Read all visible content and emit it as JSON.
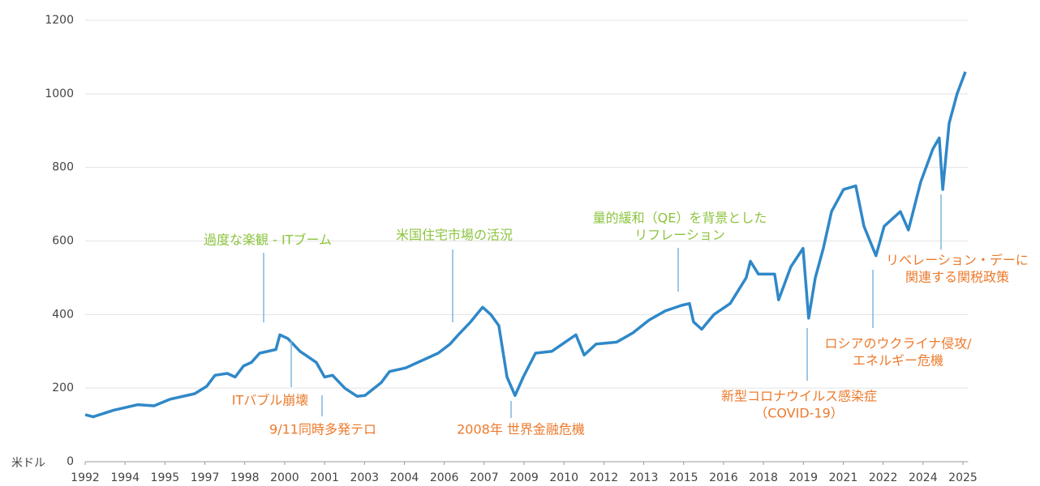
{
  "chart_data": {
    "type": "line",
    "unit_label": "米ドル",
    "xlim": [
      1992,
      2025.5
    ],
    "xticks": [
      1992,
      {
        "value": 1993.5,
        "label": "1994"
      },
      1995,
      {
        "value": 1996.5,
        "label": "1997"
      },
      1998,
      {
        "value": 1999.5,
        "label": "2000"
      },
      2001,
      {
        "value": 2002.5,
        "label": "2003"
      },
      2004,
      {
        "value": 2005.5,
        "label": "2006"
      },
      2007,
      {
        "value": 2008.5,
        "label": "2009"
      },
      2010,
      {
        "value": 2011.5,
        "label": "2012"
      },
      2013,
      {
        "value": 2014.5,
        "label": "2015"
      },
      2016,
      {
        "value": 2017.5,
        "label": "2018"
      },
      2019,
      {
        "value": 2020.5,
        "label": "2021"
      },
      2022,
      {
        "value": 2023.5,
        "label": "2024"
      },
      2025
    ],
    "ylim": [
      0,
      1200
    ],
    "yticks": [
      0,
      200,
      400,
      600,
      800,
      1000,
      1200
    ],
    "grid": true,
    "series": [
      {
        "color": "#2f88c8",
        "x": [
          1992.0,
          1992.3,
          1993.07,
          1993.98,
          1994.59,
          1995.2,
          1996.12,
          1996.57,
          1996.88,
          1997.34,
          1997.64,
          1997.95,
          1998.25,
          1998.56,
          1999.17,
          1999.32,
          1999.62,
          2000.08,
          2000.69,
          2001.0,
          2001.3,
          2001.76,
          2002.22,
          2002.52,
          2003.13,
          2003.44,
          2004.05,
          2004.66,
          2005.27,
          2005.72,
          2006.03,
          2006.49,
          2006.94,
          2007.25,
          2007.55,
          2007.86,
          2008.16,
          2008.47,
          2008.93,
          2009.54,
          2010.15,
          2010.45,
          2010.76,
          2011.21,
          2011.98,
          2012.59,
          2013.2,
          2013.81,
          2014.42,
          2014.72,
          2014.87,
          2015.18,
          2015.64,
          2016.25,
          2016.85,
          2017.01,
          2017.31,
          2017.92,
          2018.07,
          2018.53,
          2018.99,
          2019.2,
          2019.45,
          2019.75,
          2020.06,
          2020.51,
          2020.97,
          2021.28,
          2021.73,
          2022.04,
          2022.65,
          2022.95,
          2023.41,
          2023.87,
          2024.11,
          2024.24,
          2024.48,
          2024.78,
          2025.09
        ],
        "values": [
          128,
          122,
          140,
          155,
          152,
          170,
          185,
          205,
          235,
          240,
          230,
          260,
          270,
          295,
          305,
          345,
          335,
          300,
          270,
          230,
          235,
          200,
          178,
          180,
          215,
          245,
          255,
          275,
          295,
          320,
          345,
          380,
          420,
          400,
          370,
          230,
          180,
          230,
          295,
          300,
          330,
          345,
          290,
          320,
          325,
          350,
          385,
          410,
          425,
          430,
          380,
          360,
          400,
          430,
          500,
          545,
          510,
          510,
          440,
          530,
          580,
          390,
          500,
          580,
          680,
          740,
          750,
          640,
          560,
          640,
          680,
          630,
          760,
          850,
          880,
          740,
          920,
          1000,
          1060
        ]
      }
    ],
    "annotations": [
      {
        "lines": [
          "過度な楽観 - ITブーム"
        ],
        "color": "#8cc43f"
      },
      {
        "lines": [
          "米国住宅市場の活況"
        ],
        "color": "#8cc43f"
      },
      {
        "lines": [
          "量的緩和（QE）を背景とした",
          "リフレーション"
        ],
        "color": "#8cc43f"
      },
      {
        "lines": [
          "ITバブル崩壊"
        ],
        "color": "#ec7a2c"
      },
      {
        "lines": [
          "9/11同時多発テロ"
        ],
        "color": "#ec7a2c"
      },
      {
        "lines": [
          "2008年  世界金融危機"
        ],
        "color": "#ec7a2c"
      },
      {
        "lines": [
          "新型コロナウイルス感染症",
          "（COVID-19）"
        ],
        "color": "#ec7a2c"
      },
      {
        "lines": [
          "ロシアのウクライナ侵攻/",
          "エネルギー危機"
        ],
        "color": "#ec7a2c"
      },
      {
        "lines": [
          "リベレーション・デーに",
          "関連する関税政策"
        ],
        "color": "#ec7a2c"
      }
    ]
  }
}
